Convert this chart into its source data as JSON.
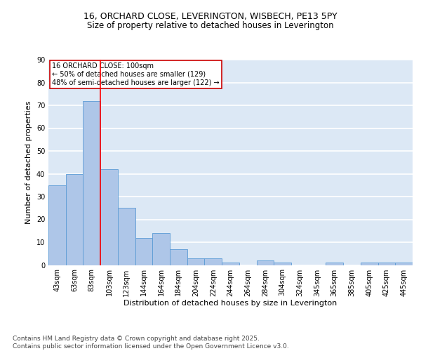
{
  "title_line1": "16, ORCHARD CLOSE, LEVERINGTON, WISBECH, PE13 5PY",
  "title_line2": "Size of property relative to detached houses in Leverington",
  "xlabel": "Distribution of detached houses by size in Leverington",
  "ylabel": "Number of detached properties",
  "bar_labels": [
    "43sqm",
    "63sqm",
    "83sqm",
    "103sqm",
    "123sqm",
    "144sqm",
    "164sqm",
    "184sqm",
    "204sqm",
    "224sqm",
    "244sqm",
    "264sqm",
    "284sqm",
    "304sqm",
    "324sqm",
    "345sqm",
    "365sqm",
    "385sqm",
    "405sqm",
    "425sqm",
    "445sqm"
  ],
  "bar_values": [
    35,
    40,
    72,
    42,
    25,
    12,
    14,
    7,
    3,
    3,
    1,
    0,
    2,
    1,
    0,
    0,
    1,
    0,
    1,
    1,
    1
  ],
  "bar_color": "#aec6e8",
  "bar_edge_color": "#5b9bd5",
  "background_color": "#dce8f5",
  "grid_color": "#ffffff",
  "red_line_x": 2.5,
  "annotation_text": "16 ORCHARD CLOSE: 100sqm\n← 50% of detached houses are smaller (129)\n48% of semi-detached houses are larger (122) →",
  "annotation_box_facecolor": "#ffffff",
  "annotation_box_edgecolor": "#cc0000",
  "ylim": [
    0,
    90
  ],
  "yticks": [
    0,
    10,
    20,
    30,
    40,
    50,
    60,
    70,
    80,
    90
  ],
  "footer_text": "Contains HM Land Registry data © Crown copyright and database right 2025.\nContains public sector information licensed under the Open Government Licence v3.0.",
  "title_fontsize": 9,
  "title2_fontsize": 8.5,
  "axis_label_fontsize": 8,
  "tick_fontsize": 7,
  "annotation_fontsize": 7,
  "footer_fontsize": 6.5
}
